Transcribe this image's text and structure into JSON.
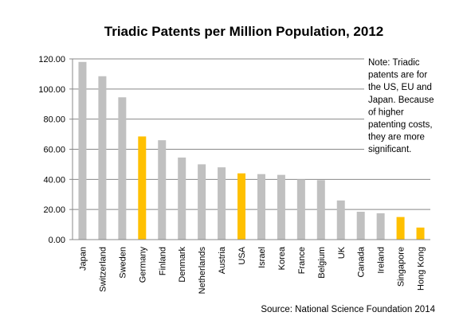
{
  "chart_data": {
    "type": "bar",
    "title": "Triadic Patents per Million Population, 2012",
    "categories": [
      "Japan",
      "Switzerland",
      "Sweden",
      "Germany",
      "Finland",
      "Denmark",
      "Netherlands",
      "Austria",
      "USA",
      "Israel",
      "Korea",
      "France",
      "Belgium",
      "UK",
      "Canada",
      "Ireland",
      "Singapore",
      "Hong Kong"
    ],
    "values": [
      118,
      108.5,
      94.5,
      68.5,
      66,
      54.5,
      50,
      48,
      44,
      43.5,
      43,
      40,
      39.5,
      26,
      18.5,
      17.5,
      15,
      8
    ],
    "highlight": [
      "Germany",
      "USA",
      "Singapore",
      "Hong Kong"
    ],
    "yticks": [
      "0.00",
      "20.00",
      "40.00",
      "60.00",
      "80.00",
      "100.00",
      "120.00"
    ],
    "ylim": [
      0,
      120
    ],
    "grid": true,
    "colors": {
      "default": "#c0c0c0",
      "highlight": "#ffc000",
      "grid": "#888888",
      "axis": "#888888"
    },
    "note_lines": [
      "Note: Triadic",
      "patents are for",
      "the US, EU and",
      "Japan. Because",
      "of higher",
      "patenting costs,",
      "they are more",
      "significant."
    ],
    "source": "Source: National Science Foundation 2014"
  }
}
